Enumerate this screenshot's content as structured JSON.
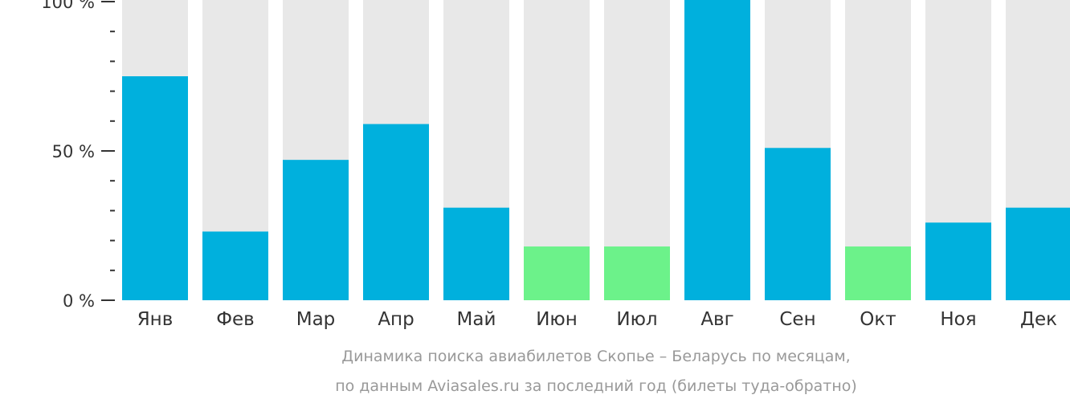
{
  "chart_data": {
    "type": "bar",
    "categories": [
      "Янв",
      "Фев",
      "Мар",
      "Апр",
      "Май",
      "Июн",
      "Июл",
      "Авг",
      "Сен",
      "Окт",
      "Ноя",
      "Дек"
    ],
    "values": [
      75,
      23,
      47,
      59,
      31,
      18,
      18,
      100,
      51,
      18,
      26,
      31
    ],
    "highlight": [
      false,
      false,
      false,
      false,
      false,
      true,
      true,
      false,
      false,
      true,
      false,
      false
    ],
    "ylim": [
      0,
      100
    ],
    "yticks": [
      {
        "value": 0,
        "label": "0 %"
      },
      {
        "value": 50,
        "label": "50 %"
      },
      {
        "value": 100,
        "label": "100 %"
      }
    ],
    "minor_tick_step": 10,
    "caption_line1": "Динамика поиска авиабилетов Скопье – Беларусь по месяцам,",
    "caption_line2": "по данным Aviasales.ru за последний год (билеты туда-обратно)",
    "colors": {
      "bar": "#00b0dd",
      "bar_highlight": "#6cf28a",
      "track": "#e8e8e8",
      "axis": "#333333"
    }
  }
}
